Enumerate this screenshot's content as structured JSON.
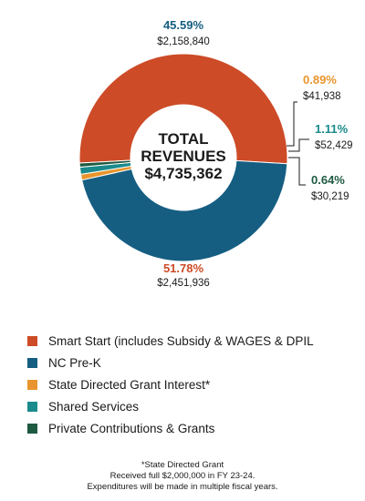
{
  "chart_data": {
    "type": "pie",
    "center_label": [
      "TOTAL",
      "REVENUES",
      "$4,735,362"
    ],
    "slices": [
      {
        "name": "Smart Start (includes Subsidy & WAGES & DPIL",
        "percent": 51.78,
        "percent_label": "51.78%",
        "amount_label": "$2,451,936",
        "color": "#CD4B27"
      },
      {
        "name": "NC Pre-K",
        "percent": 45.59,
        "percent_label": "45.59%",
        "amount_label": "$2,158,840",
        "color": "#155E82"
      },
      {
        "name": "State Directed Grant Interest*",
        "percent": 0.89,
        "percent_label": "0.89%",
        "amount_label": "$41,938",
        "color": "#E8952D"
      },
      {
        "name": "Shared Services",
        "percent": 1.11,
        "percent_label": "1.11%",
        "amount_label": "$52,429",
        "color": "#1A8A8C"
      },
      {
        "name": "Private Contributions & Grants",
        "percent": 0.64,
        "percent_label": "0.64%",
        "amount_label": "$30,219",
        "color": "#1E5A41"
      }
    ]
  },
  "footnote": {
    "line1": "*State Directed Grant",
    "line2": "Received full $2,000,000 in FY 23-24.",
    "line3": "Expenditures will be made in multiple fiscal years."
  }
}
